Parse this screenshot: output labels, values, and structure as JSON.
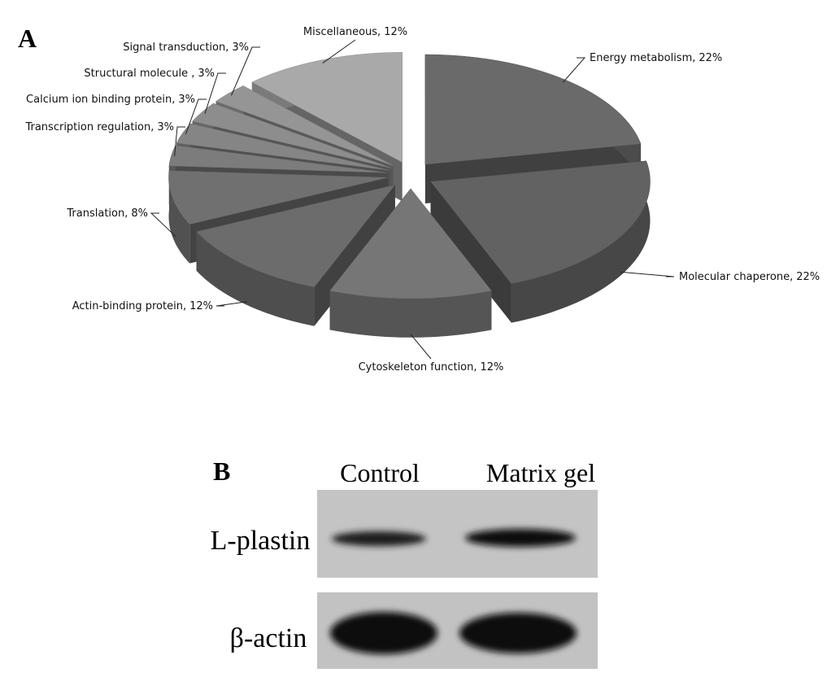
{
  "chart_data": {
    "type": "pie",
    "panel_label": "A",
    "categories": [
      "Energy metabolism,",
      "Molecular chaperone,",
      "Cytoskeleton function,",
      "Actin-binding protein,",
      "Translation,",
      "Transcription regulation,",
      "Calcium ion binding protein,",
      "Structural molecule ,",
      "Signal transduction,",
      "Miscellaneous,"
    ],
    "values": [
      22,
      22,
      12,
      12,
      8,
      3,
      3,
      3,
      3,
      12
    ],
    "value_labels": [
      "22%",
      "22%",
      "12%",
      "12%",
      "8%",
      "3%",
      "3%",
      "3%",
      "3%",
      "12%"
    ],
    "colors": [
      "#6a6a6a",
      "#626262",
      "#767676",
      "#6c6c6c",
      "#707070",
      "#7c7c7c",
      "#858585",
      "#8d8d8d",
      "#959595",
      "#a9a9a9"
    ]
  },
  "blot": {
    "panel_label": "B",
    "columns": [
      "Control",
      "Matrix gel"
    ],
    "rows": [
      "L-plastin",
      "β-actin"
    ]
  }
}
